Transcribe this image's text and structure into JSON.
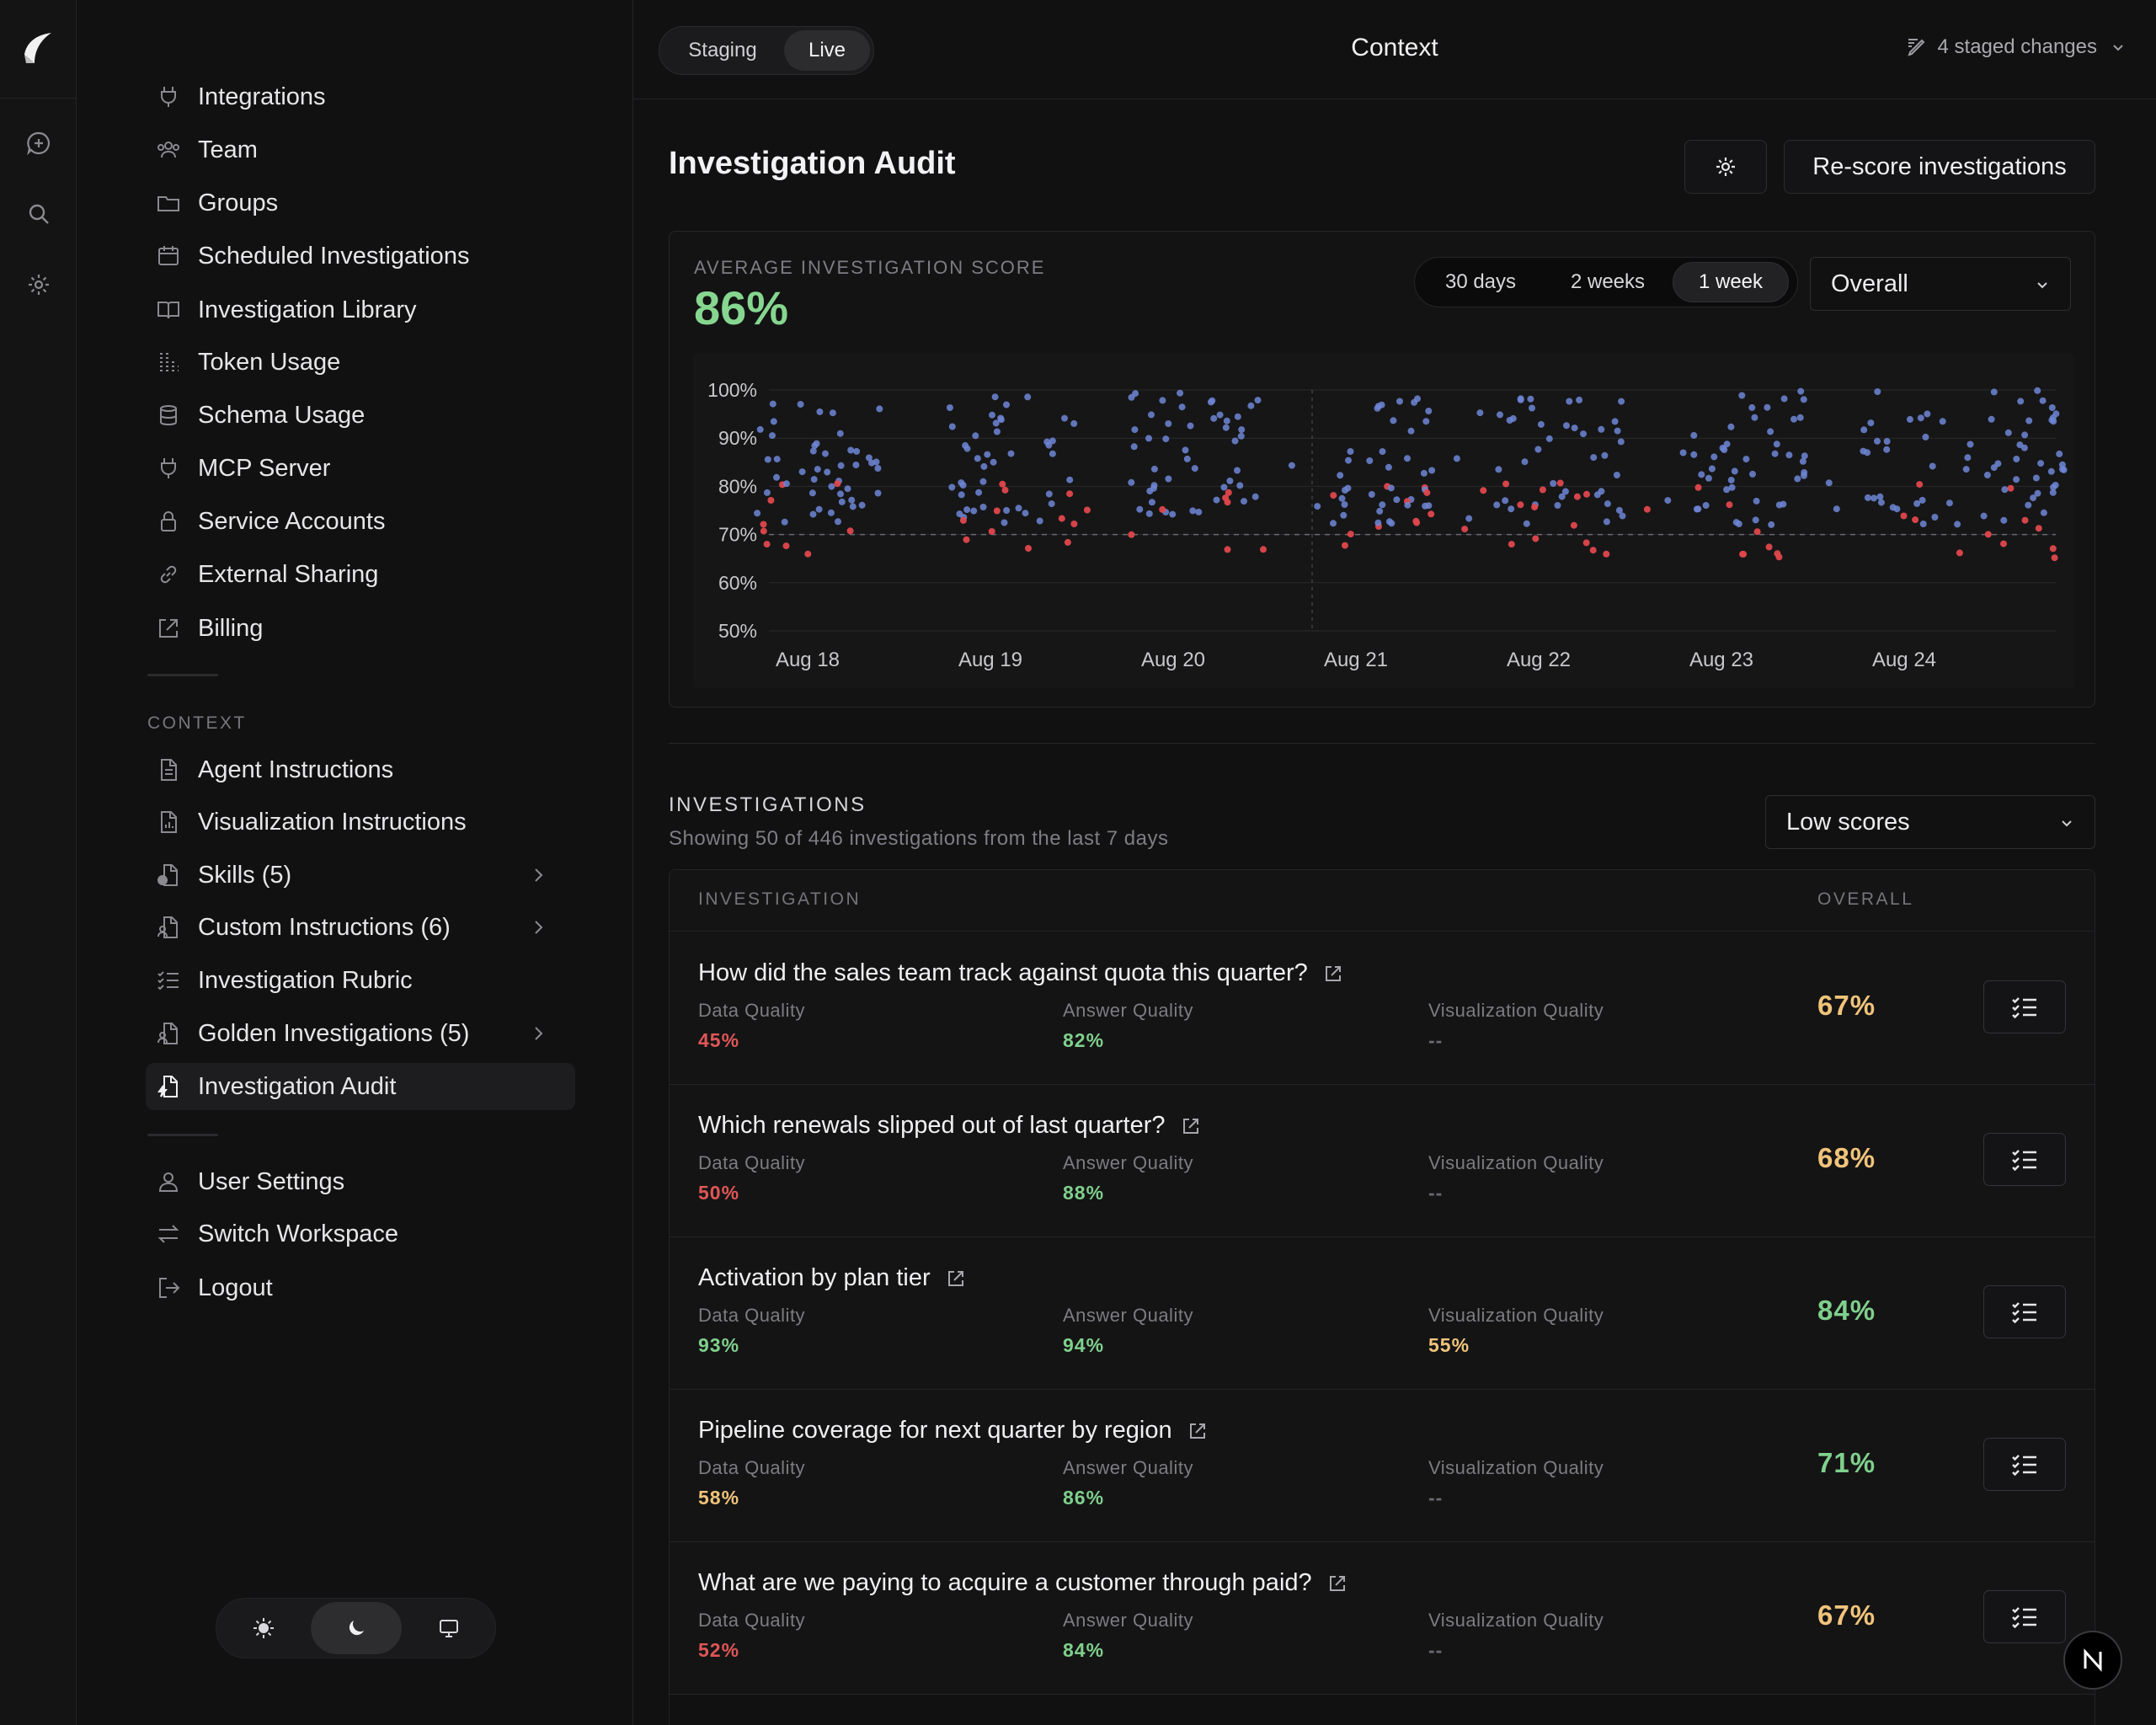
{
  "rail": {
    "icons": [
      "logo-icon",
      "new-chat-icon",
      "search-icon",
      "gear-icon"
    ]
  },
  "sidebar": {
    "items": [
      {
        "label": "Integrations",
        "icon": "plug-icon"
      },
      {
        "label": "Team",
        "icon": "team-icon"
      },
      {
        "label": "Groups",
        "icon": "folder-icon"
      },
      {
        "label": "Scheduled Investigations",
        "icon": "calendar-icon"
      },
      {
        "label": "Investigation Library",
        "icon": "book-icon"
      },
      {
        "label": "Token Usage",
        "icon": "token-grid-icon"
      },
      {
        "label": "Schema Usage",
        "icon": "database-icon"
      },
      {
        "label": "MCP Server",
        "icon": "plug-icon"
      },
      {
        "label": "Service Accounts",
        "icon": "lock-icon"
      },
      {
        "label": "External Sharing",
        "icon": "link-icon"
      },
      {
        "label": "Billing",
        "icon": "external-link-icon"
      }
    ],
    "context_label": "CONTEXT",
    "context_items": [
      {
        "label": "Agent Instructions",
        "icon": "document-icon"
      },
      {
        "label": "Visualization Instructions",
        "icon": "document-chart-icon"
      },
      {
        "label": "Skills (5)",
        "icon": "document-check-icon",
        "expandable": true
      },
      {
        "label": "Custom Instructions (6)",
        "icon": "document-user-icon",
        "expandable": true
      },
      {
        "label": "Investigation Rubric",
        "icon": "checklist-icon"
      },
      {
        "label": "Golden Investigations (5)",
        "icon": "document-user-icon",
        "expandable": true
      },
      {
        "label": "Investigation Audit",
        "icon": "document-bolt-icon",
        "active": true
      }
    ],
    "account_items": [
      {
        "label": "User Settings",
        "icon": "user-icon"
      },
      {
        "label": "Switch Workspace",
        "icon": "swap-icon"
      },
      {
        "label": "Logout",
        "icon": "logout-icon"
      }
    ],
    "theme": {
      "options": [
        "sun-icon",
        "moon-icon",
        "monitor-icon"
      ],
      "selected": "moon-icon"
    }
  },
  "topbar": {
    "env": {
      "options": [
        "Staging",
        "Live"
      ],
      "selected": "Live"
    },
    "title": "Context",
    "staged": "4 staged changes"
  },
  "page": {
    "title": "Investigation Audit",
    "rescore_label": "Re-score investigations"
  },
  "score_card": {
    "label": "AVERAGE INVESTIGATION SCORE",
    "value": "86%",
    "ranges": [
      "30 days",
      "2 weeks",
      "1 week"
    ],
    "selected_range": "1 week",
    "metric": "Overall"
  },
  "chart_data": {
    "type": "scatter",
    "ylim": [
      50,
      100
    ],
    "yticks": [
      "100%",
      "90%",
      "80%",
      "70%",
      "60%",
      "50%"
    ],
    "xticks": [
      "Aug 18",
      "Aug 19",
      "Aug 20",
      "Aug 21",
      "Aug 22",
      "Aug 23",
      "Aug 24"
    ],
    "threshold": 70,
    "grid": true,
    "colors": {
      "above": "#6f86d6",
      "below": "#e0474c"
    },
    "note": "~446 points clustered per day; red points fall at or below ~80%"
  },
  "investigations": {
    "heading": "INVESTIGATIONS",
    "summary": "Showing 50 of 446 investigations from the last 7 days",
    "filter": "Low scores",
    "col_investigation": "INVESTIGATION",
    "col_overall": "OVERALL",
    "metric_labels": {
      "data": "Data Quality",
      "answer": "Answer Quality",
      "viz": "Visualization Quality"
    },
    "rows": [
      {
        "question": "How did the sales team track against quota this quarter?",
        "data": "45%",
        "data_c": "red",
        "answer": "82%",
        "answer_c": "green",
        "viz": "--",
        "viz_c": "dim",
        "overall": "67%",
        "overall_c": "amber"
      },
      {
        "question": "Which renewals slipped out of last quarter?",
        "data": "50%",
        "data_c": "red",
        "answer": "88%",
        "answer_c": "green",
        "viz": "--",
        "viz_c": "dim",
        "overall": "68%",
        "overall_c": "amber"
      },
      {
        "question": "Activation by plan tier",
        "data": "93%",
        "data_c": "green",
        "answer": "94%",
        "answer_c": "green",
        "viz": "55%",
        "viz_c": "amber",
        "overall": "84%",
        "overall_c": "green"
      },
      {
        "question": "Pipeline coverage for next quarter by region",
        "data": "58%",
        "data_c": "amber",
        "answer": "86%",
        "answer_c": "green",
        "viz": "--",
        "viz_c": "dim",
        "overall": "71%",
        "overall_c": "green"
      },
      {
        "question": "What are we paying to acquire a customer through paid?",
        "data": "52%",
        "data_c": "red",
        "answer": "84%",
        "answer_c": "green",
        "viz": "--",
        "viz_c": "dim",
        "overall": "67%",
        "overall_c": "amber"
      }
    ]
  }
}
